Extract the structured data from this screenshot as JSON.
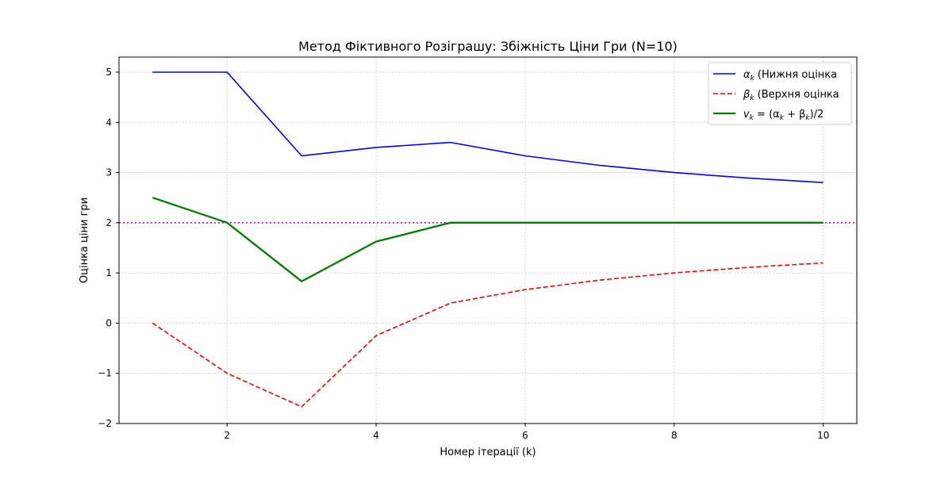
{
  "chart_data": {
    "type": "line",
    "title": "Метод Фіктивного Розіграшу: Збіжність Ціни Гри (N=10)",
    "xlabel": "Номер ітерації (k)",
    "ylabel": "Оцінка ціни гри",
    "xlim": [
      0.55,
      10.45
    ],
    "ylim": [
      -2,
      5.3
    ],
    "xticks": [
      2,
      4,
      6,
      8,
      10
    ],
    "yticks": [
      -2,
      -1,
      0,
      1,
      2,
      3,
      4,
      5
    ],
    "grid": true,
    "legend_position": "top-right",
    "x": [
      1,
      2,
      3,
      4,
      5,
      6,
      7,
      8,
      9,
      10
    ],
    "series": [
      {
        "name": "α_k (Нижня оцінка",
        "legend_label": {
          "sym": "α",
          "sub": "k",
          "rest": " (Нижня оцінка"
        },
        "values": [
          5.0,
          5.0,
          3.333,
          3.5,
          3.6,
          3.333,
          3.143,
          3.0,
          2.889,
          2.8
        ],
        "color": "#0000ff",
        "style": "solid"
      },
      {
        "name": "β_k (Верхня оцінка",
        "legend_label": {
          "sym": "β",
          "sub": "k",
          "rest": " (Верхня оцінка"
        },
        "values": [
          0.0,
          -1.0,
          -1.667,
          -0.25,
          0.4,
          0.667,
          0.857,
          1.0,
          1.111,
          1.2
        ],
        "color": "#ff0000",
        "style": "dashed"
      },
      {
        "name": "v_k = (α_k + β_k)/2",
        "legend_label": {
          "sym": "v",
          "sub": "k",
          "rest": " = (α",
          "sub2": "k",
          "rest2": " + β",
          "sub3": "k",
          "rest3": ")/2"
        },
        "values": [
          2.5,
          2.0,
          0.833,
          1.625,
          2.0,
          2.0,
          2.0,
          2.0,
          2.0,
          2.0
        ],
        "color": "#008000",
        "style": "solid-thick"
      }
    ],
    "reference_line": {
      "y": 2,
      "color": "#bf00bf",
      "style": "dotted"
    }
  }
}
